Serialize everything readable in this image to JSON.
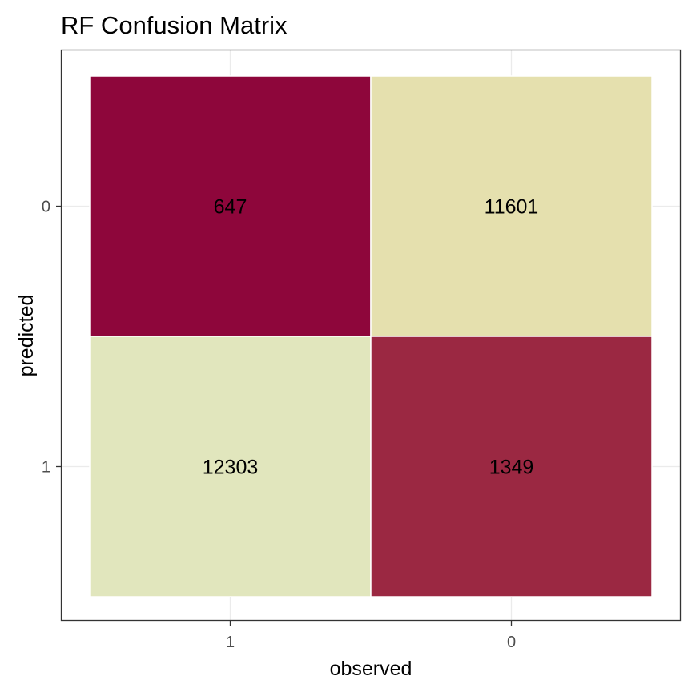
{
  "chart_data": {
    "type": "heatmap",
    "title": "RF Confusion Matrix",
    "xlabel": "observed",
    "ylabel": "predicted",
    "x_categories": [
      "1",
      "0"
    ],
    "y_categories": [
      "0",
      "1"
    ],
    "cells": [
      {
        "observed": "1",
        "predicted": "0",
        "value": 647,
        "color": "#8e063b"
      },
      {
        "observed": "0",
        "predicted": "0",
        "value": 11601,
        "color": "#e5e0ae"
      },
      {
        "observed": "1",
        "predicted": "1",
        "value": 12303,
        "color": "#e1e6bd"
      },
      {
        "observed": "0",
        "predicted": "1",
        "value": 1349,
        "color": "#9b2842"
      }
    ],
    "grid": true,
    "legend": "none"
  }
}
